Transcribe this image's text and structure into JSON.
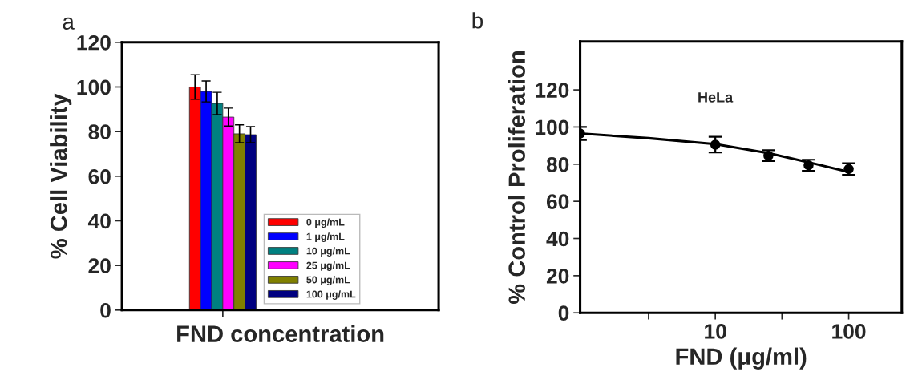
{
  "chart_data": [
    {
      "type": "bar",
      "categories": [
        null
      ],
      "xlabel": "FND concentration",
      "ylabel": "% Cell Viability",
      "ylim": [
        0,
        120
      ],
      "yticks": [
        0,
        20,
        40,
        60,
        80,
        100,
        120
      ],
      "legend": "bottom",
      "grid": false,
      "annotations": [
        "a"
      ],
      "series": [
        {
          "name": "0 μg/mL",
          "color": "#ff0000",
          "values": [
            100
          ],
          "errors": [
            5.5
          ]
        },
        {
          "name": "1 μg/mL",
          "color": "#0000ff",
          "values": [
            98
          ],
          "errors": [
            4.7
          ]
        },
        {
          "name": "10 μg/mL",
          "color": "#008080",
          "values": [
            92.6
          ],
          "errors": [
            5
          ]
        },
        {
          "name": "25 μg/mL",
          "color": "#ff00ff",
          "values": [
            86.5
          ],
          "errors": [
            4
          ]
        },
        {
          "name": "50 μg/mL",
          "color": "#808000",
          "values": [
            79
          ],
          "errors": [
            4
          ]
        },
        {
          "name": "100 μg/mL",
          "color": "#000080",
          "values": [
            78.6
          ],
          "errors": [
            3.6
          ]
        }
      ]
    },
    {
      "type": "scatter",
      "xlabel": "FND (μg/ml)",
      "ylabel": "% Control Proliferation",
      "log": "x",
      "xlim": [
        0.97,
        250
      ],
      "xticks": [
        {
          "value": 3.16,
          "label": null
        },
        10,
        {
          "value": 31.6,
          "label": null
        },
        100
      ],
      "ylim": [
        0,
        146
      ],
      "yticks": [
        0,
        20,
        40,
        60,
        80,
        100,
        120
      ],
      "grid": false,
      "legend": false,
      "annotations": [
        "b",
        "HeLa"
      ],
      "series": [
        {
          "type": "line",
          "color": "#000000",
          "x": [
            0.97,
            3.16,
            10,
            25,
            50,
            100
          ],
          "values": [
            96.5,
            94,
            90.8,
            86,
            81,
            75.8
          ],
          "marker": "none"
        },
        {
          "type": "scatter",
          "color": "#000000",
          "x": [
            0.97,
            10,
            25,
            50,
            100
          ],
          "values": [
            96.5,
            90.5,
            84.6,
            79.4,
            77.4
          ],
          "errors": [
            3.5,
            4.2,
            2.9,
            3,
            3.1
          ],
          "marker": "circle"
        }
      ]
    }
  ]
}
